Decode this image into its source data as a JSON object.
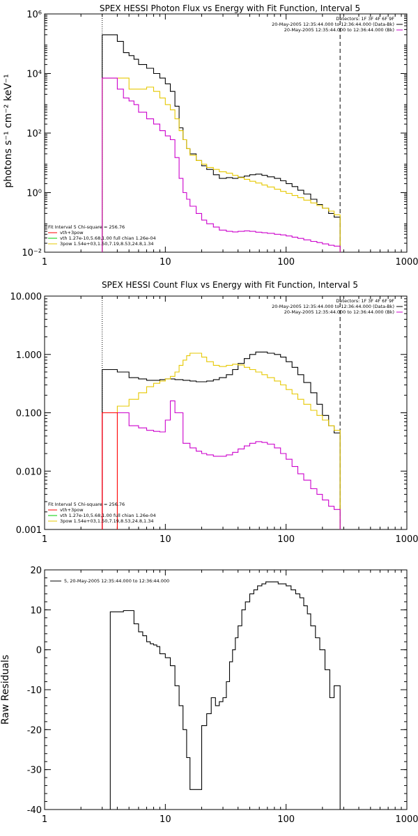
{
  "chart_data": [
    {
      "type": "line",
      "title": "SPEX HESSI Photon Flux vs Energy with Fit Function, Interval 5",
      "xlabel": "",
      "ylabel": "photons s⁻¹ cm⁻² keV⁻¹",
      "x_scale": "log",
      "y_scale": "log",
      "xlim": [
        1,
        1000
      ],
      "ylim": [
        0.01,
        1000000
      ],
      "x_ticks": [
        {
          "v": 1,
          "label": "1"
        },
        {
          "v": 10,
          "label": "10"
        },
        {
          "v": 100,
          "label": "100"
        },
        {
          "v": 1000,
          "label": "1000"
        }
      ],
      "y_ticks": [
        {
          "v": 0.01,
          "label": "10⁻²"
        },
        {
          "v": 1,
          "label": "10⁰"
        },
        {
          "v": 100,
          "label": "10²"
        },
        {
          "v": 10000,
          "label": "10⁴"
        },
        {
          "v": 1000000,
          "label": "10⁶"
        }
      ],
      "legend_top": [
        "Detectors: 1F 3F 4F 6F 9F",
        "20-May-2005 12:35:44.000 to 12:36:44.000 (Data-Bk)",
        "20-May-2005 12:35:44.000 to 12:36:44.000 (Bk)"
      ],
      "legend_top_colors": [
        "#000000",
        "#000000",
        "#cc00cc"
      ],
      "legend_bottom": [
        "Fit Interval 5   Chi-square = 256.76",
        "vth+3pow",
        "vth 1.27e-10,5.68,1.00   full chian 1.26e-04",
        "3pow 1.54e+03,1.50,7.19,8.53,24.8,1.34"
      ],
      "legend_bottom_colors": [
        "#000000",
        "#ff0000",
        "#00cc00",
        "#e6c800"
      ],
      "dashed_x": 280,
      "dotted_x": 3,
      "series": [
        {
          "color": "#000000",
          "x": [
            3,
            3.5,
            4,
            4.5,
            5,
            5.5,
            6,
            7,
            8,
            9,
            10,
            11,
            12,
            13,
            14,
            15,
            16,
            18,
            20,
            22,
            25,
            28,
            32,
            36,
            40,
            45,
            50,
            56,
            63,
            70,
            80,
            90,
            100,
            112,
            125,
            140,
            160,
            180,
            200,
            225,
            250,
            280
          ],
          "y": [
            200000,
            200000,
            120000,
            50000,
            40000,
            30000,
            20000,
            15000,
            10000,
            7000,
            4500,
            2500,
            800,
            150,
            60,
            30,
            20,
            12,
            8,
            6,
            4,
            3,
            3.2,
            3,
            3.3,
            3.6,
            4,
            4.2,
            3.8,
            3.4,
            3,
            2.5,
            2,
            1.6,
            1.2,
            0.9,
            0.6,
            0.4,
            0.3,
            0.2,
            0.15,
            0.12
          ]
        },
        {
          "color": "#e6c800",
          "x": [
            3,
            4,
            5,
            6,
            7,
            8,
            9,
            10,
            11,
            12,
            13,
            14,
            15,
            16,
            18,
            20,
            22,
            25,
            28,
            32,
            36,
            40,
            45,
            50,
            56,
            63,
            70,
            80,
            90,
            100,
            112,
            125,
            140,
            160,
            180,
            200,
            225,
            250,
            280
          ],
          "y": [
            7000,
            7000,
            3000,
            3000,
            3500,
            2500,
            1500,
            900,
            600,
            300,
            120,
            60,
            30,
            18,
            12,
            9,
            7,
            6,
            5,
            4.5,
            3.8,
            3.2,
            2.8,
            2.4,
            2.1,
            1.8,
            1.55,
            1.3,
            1.1,
            0.95,
            0.8,
            0.68,
            0.56,
            0.45,
            0.37,
            0.3,
            0.24,
            0.18,
            0.12
          ]
        },
        {
          "color": "#cc00cc",
          "x": [
            3,
            4,
            4.5,
            5,
            5.5,
            6,
            7,
            8,
            9,
            10,
            11,
            12,
            13,
            14,
            15,
            16,
            18,
            20,
            22,
            25,
            28,
            32,
            36,
            40,
            45,
            50,
            56,
            63,
            70,
            80,
            90,
            100,
            112,
            125,
            140,
            160,
            180,
            200,
            225,
            250,
            280
          ],
          "y": [
            7000,
            3000,
            1500,
            1200,
            900,
            500,
            300,
            200,
            120,
            80,
            60,
            15,
            3,
            1,
            0.6,
            0.35,
            0.2,
            0.12,
            0.09,
            0.07,
            0.055,
            0.05,
            0.048,
            0.05,
            0.052,
            0.05,
            0.047,
            0.045,
            0.043,
            0.04,
            0.038,
            0.035,
            0.032,
            0.029,
            0.026,
            0.023,
            0.021,
            0.019,
            0.017,
            0.016,
            0.015
          ]
        }
      ]
    },
    {
      "type": "line",
      "title": "SPEX HESSI Count Flux vs Energy with Fit Function, Interval 5",
      "xlabel": "",
      "ylabel": "",
      "x_scale": "log",
      "y_scale": "log",
      "xlim": [
        1,
        1000
      ],
      "ylim": [
        0.001,
        10
      ],
      "x_ticks": [
        {
          "v": 1,
          "label": "1"
        },
        {
          "v": 10,
          "label": "10"
        },
        {
          "v": 100,
          "label": "100"
        },
        {
          "v": 1000,
          "label": "1000"
        }
      ],
      "y_ticks": [
        {
          "v": 0.001,
          "label": "0.001"
        },
        {
          "v": 0.01,
          "label": "0.010"
        },
        {
          "v": 0.1,
          "label": "0.100"
        },
        {
          "v": 1,
          "label": "1.000"
        },
        {
          "v": 10,
          "label": "10.000"
        }
      ],
      "legend_top": [
        "Detectors: 1F 3F 4F 6F 9F",
        "20-May-2005 12:35:44.000 to 12:36:44.000 (Data-Bk)",
        "20-May-2005 12:35:44.000 to 12:36:44.000 (Bk)"
      ],
      "legend_top_colors": [
        "#000000",
        "#000000",
        "#cc00cc"
      ],
      "legend_bottom": [
        "Fit Interval 5   Chi-square = 256.76",
        "vth+3pow",
        "vth 1.27e-10,5.68,1.00   full chian 1.26e-04",
        "3pow 1.54e+03,1.50,7.19,8.53,24.8,1.34"
      ],
      "legend_bottom_colors": [
        "#000000",
        "#ff0000",
        "#00cc00",
        "#e6c800"
      ],
      "dashed_x": 280,
      "dotted_x": 3,
      "series": [
        {
          "color": "#000000",
          "x": [
            3,
            4,
            5,
            6,
            7,
            8,
            9,
            10,
            12,
            14,
            16,
            18,
            20,
            22,
            25,
            28,
            32,
            36,
            40,
            45,
            50,
            56,
            63,
            70,
            80,
            90,
            100,
            112,
            125,
            140,
            160,
            180,
            200,
            225,
            250,
            280
          ],
          "y": [
            0.55,
            0.5,
            0.4,
            0.38,
            0.36,
            0.36,
            0.37,
            0.38,
            0.37,
            0.36,
            0.35,
            0.34,
            0.34,
            0.35,
            0.37,
            0.4,
            0.45,
            0.55,
            0.7,
            0.85,
            1.0,
            1.1,
            1.1,
            1.05,
            1.0,
            0.9,
            0.75,
            0.6,
            0.45,
            0.33,
            0.22,
            0.14,
            0.09,
            0.06,
            0.045,
            0.035
          ]
        },
        {
          "color": "#e6c800",
          "x": [
            3,
            4,
            5,
            6,
            7,
            8,
            9,
            10,
            11,
            12,
            13,
            14,
            15,
            16,
            18,
            20,
            22,
            25,
            28,
            32,
            36,
            40,
            45,
            50,
            56,
            63,
            70,
            80,
            90,
            100,
            112,
            125,
            140,
            160,
            180,
            200,
            225,
            250,
            280
          ],
          "y": [
            0.1,
            0.13,
            0.17,
            0.22,
            0.28,
            0.32,
            0.35,
            0.38,
            0.42,
            0.5,
            0.65,
            0.8,
            0.95,
            1.05,
            1.05,
            0.9,
            0.75,
            0.65,
            0.62,
            0.65,
            0.68,
            0.66,
            0.6,
            0.55,
            0.5,
            0.45,
            0.4,
            0.35,
            0.3,
            0.25,
            0.21,
            0.17,
            0.14,
            0.11,
            0.09,
            0.075,
            0.06,
            0.05,
            0.04
          ]
        },
        {
          "color": "#cc00cc",
          "x": [
            3,
            4,
            5,
            6,
            7,
            8,
            9,
            10,
            11,
            12,
            14,
            16,
            18,
            20,
            22,
            25,
            28,
            32,
            36,
            40,
            45,
            50,
            56,
            63,
            70,
            80,
            90,
            100,
            112,
            125,
            140,
            160,
            180,
            200,
            225,
            250,
            280
          ],
          "y": [
            0.1,
            0.1,
            0.06,
            0.055,
            0.05,
            0.048,
            0.047,
            0.075,
            0.16,
            0.1,
            0.03,
            0.025,
            0.022,
            0.02,
            0.019,
            0.018,
            0.018,
            0.019,
            0.021,
            0.024,
            0.027,
            0.03,
            0.032,
            0.031,
            0.029,
            0.025,
            0.02,
            0.016,
            0.012,
            0.009,
            0.007,
            0.005,
            0.004,
            0.0032,
            0.0025,
            0.0022,
            0.002
          ]
        },
        {
          "color": "#ff0000",
          "x": [
            3,
            4
          ],
          "y": [
            0.1,
            0.1
          ]
        }
      ]
    },
    {
      "type": "line",
      "title": "",
      "xlabel": "",
      "ylabel": "Raw Residuals",
      "x_scale": "log",
      "y_scale": "linear",
      "xlim": [
        1,
        1000
      ],
      "ylim": [
        -40,
        20
      ],
      "x_ticks": [
        {
          "v": 1,
          "label": "1"
        },
        {
          "v": 10,
          "label": "10"
        },
        {
          "v": 100,
          "label": "100"
        },
        {
          "v": 1000,
          "label": "1000"
        }
      ],
      "y_ticks": [
        {
          "v": -40,
          "label": "-40"
        },
        {
          "v": -30,
          "label": "-30"
        },
        {
          "v": -20,
          "label": "-20"
        },
        {
          "v": -10,
          "label": "-10"
        },
        {
          "v": 0,
          "label": "0"
        },
        {
          "v": 10,
          "label": "10"
        },
        {
          "v": 20,
          "label": "20"
        }
      ],
      "legend_top": [],
      "legend_top_colors": [],
      "legend_bottom": [],
      "legend_bottom_colors": [],
      "legend_line": "5, 20-May-2005 12:35:44.000 to 12:36:44.000",
      "series": [
        {
          "color": "#000000",
          "x": [
            3,
            3.5,
            4,
            4.5,
            5,
            5.5,
            6,
            6.5,
            7,
            7.5,
            8,
            8.5,
            9,
            9.5,
            10,
            11,
            12,
            13,
            14,
            15,
            16,
            18,
            20,
            22,
            24,
            26,
            28,
            30,
            32,
            34,
            36,
            38,
            40,
            43,
            46,
            50,
            54,
            58,
            63,
            68,
            74,
            80,
            86,
            93,
            100,
            110,
            120,
            130,
            140,
            150,
            160,
            175,
            190,
            210,
            230,
            250,
            280
          ],
          "y": [
            -40,
            9.5,
            9.5,
            9.8,
            9.8,
            6.5,
            4.5,
            3.5,
            2,
            1.5,
            1.2,
            0.8,
            -1,
            -1,
            -2,
            -4,
            -9,
            -14,
            -20,
            -27,
            -35,
            -35,
            -19,
            -16,
            -12,
            -14,
            -13,
            -12,
            -8,
            -3,
            0,
            3,
            6,
            10,
            12,
            14,
            15,
            16,
            16.5,
            17,
            17,
            17,
            16.5,
            16.5,
            16,
            15,
            14,
            13,
            11,
            9,
            6,
            3,
            0,
            -5,
            -12,
            -9,
            -40
          ]
        }
      ]
    }
  ]
}
